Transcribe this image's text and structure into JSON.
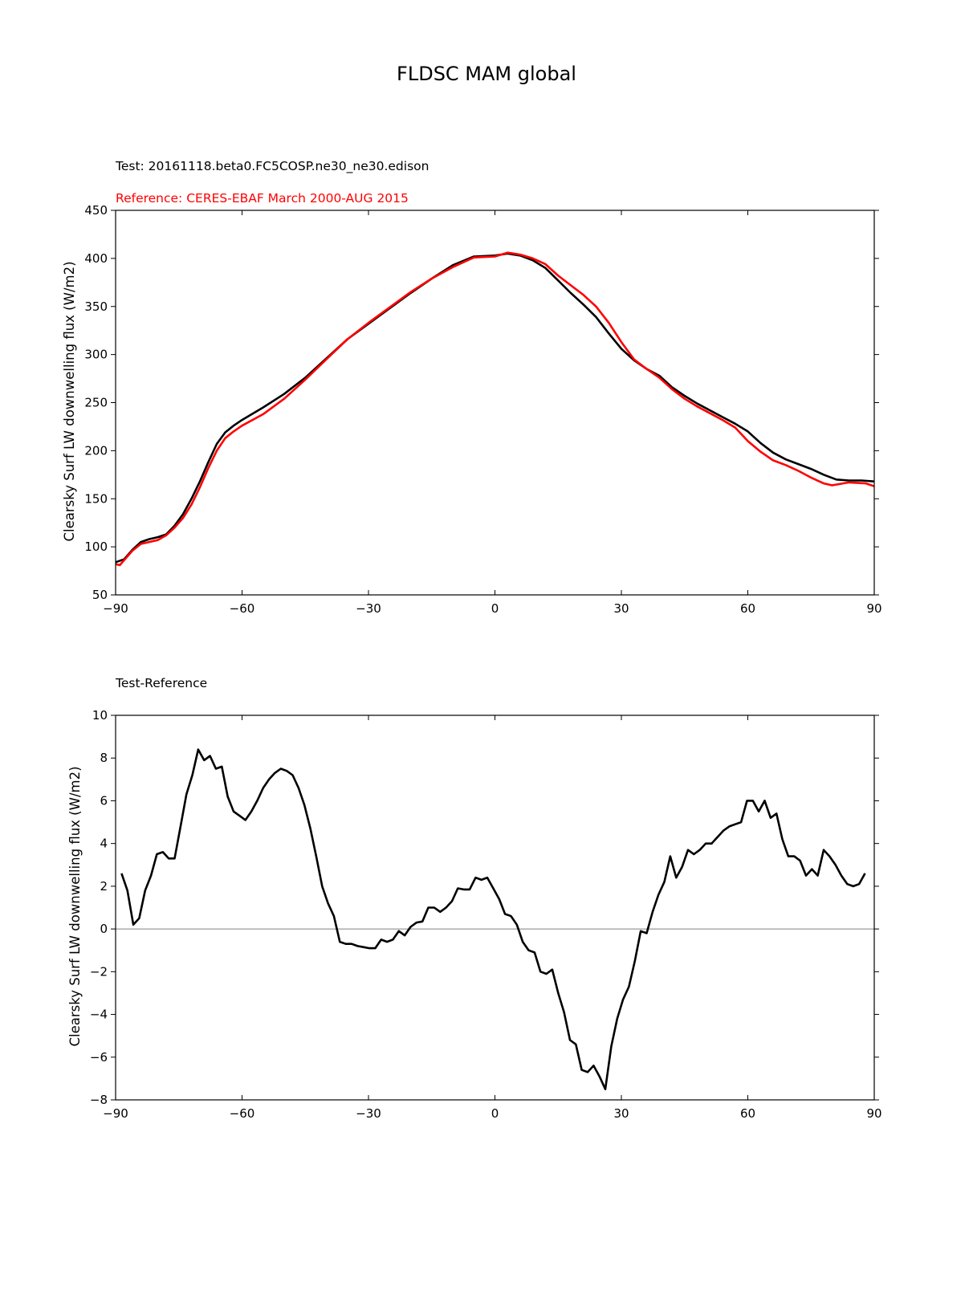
{
  "figure": {
    "title": "FLDSC MAM global",
    "test_label": "Test: 20161118.beta0.FC5COSP.ne30_ne30.edison",
    "reference_label": "Reference: CERES-EBAF March 2000-AUG 2015",
    "diff_label": "Test-Reference",
    "colors": {
      "test": "#000000",
      "reference": "#ff0000",
      "zero_line": "#808080"
    }
  },
  "chart_data": [
    {
      "type": "line",
      "ylabel": "Clearsky Surf LW downwelling flux (W/m2)",
      "xlabel": "",
      "xlim": [
        -90,
        90
      ],
      "ylim": [
        50,
        450
      ],
      "xticks": [
        -90,
        -60,
        -30,
        0,
        30,
        60,
        90
      ],
      "xtick_labels": [
        "−90",
        "−60",
        "−30",
        "0",
        "30",
        "60",
        "90"
      ],
      "yticks": [
        50,
        100,
        150,
        200,
        250,
        300,
        350,
        400,
        450
      ],
      "ytick_labels": [
        "50",
        "100",
        "150",
        "200",
        "250",
        "300",
        "350",
        "400",
        "450"
      ],
      "series": [
        {
          "name": "Test: 20161118.beta0.FC5COSP.ne30_ne30.edison",
          "color": "#000000",
          "x": [
            -90,
            -88,
            -86,
            -84,
            -82,
            -80,
            -78,
            -76,
            -74,
            -72,
            -70,
            -68,
            -66,
            -64,
            -62,
            -60,
            -55,
            -50,
            -45,
            -40,
            -35,
            -30,
            -25,
            -20,
            -15,
            -10,
            -5,
            0,
            3,
            6,
            9,
            12,
            15,
            18,
            21,
            24,
            27,
            30,
            33,
            36,
            39,
            42,
            45,
            48,
            51,
            54,
            57,
            60,
            63,
            66,
            69,
            72,
            75,
            78,
            81,
            84,
            87,
            90
          ],
          "values": [
            84,
            87,
            97,
            105,
            108,
            110,
            113,
            122,
            134,
            150,
            168,
            188,
            207,
            219,
            226,
            232,
            245,
            259,
            276,
            296,
            316,
            332,
            348,
            364,
            379,
            393,
            402,
            403,
            405,
            403,
            398,
            390,
            377,
            364,
            352,
            339,
            322,
            306,
            294,
            285,
            278,
            266,
            257,
            249,
            242,
            235,
            228,
            220,
            208,
            198,
            191,
            186,
            181,
            175,
            170,
            169,
            169,
            168
          ]
        },
        {
          "name": "Reference: CERES-EBAF March 2000-AUG 2015",
          "color": "#ff0000",
          "x": [
            -90,
            -89,
            -88,
            -86,
            -84,
            -82,
            -80,
            -78,
            -76,
            -74,
            -72,
            -70,
            -68,
            -66,
            -64,
            -62,
            -60,
            -55,
            -50,
            -45,
            -40,
            -35,
            -30,
            -25,
            -20,
            -15,
            -10,
            -5,
            0,
            3,
            6,
            9,
            12,
            15,
            18,
            21,
            24,
            27,
            30,
            33,
            36,
            39,
            42,
            45,
            48,
            51,
            54,
            57,
            60,
            63,
            66,
            69,
            72,
            75,
            78,
            80,
            84,
            88,
            90
          ],
          "values": [
            82,
            81,
            86,
            96,
            103,
            105,
            107,
            112,
            120,
            130,
            144,
            162,
            182,
            200,
            213,
            220,
            226,
            238,
            254,
            274,
            295,
            316,
            333,
            349,
            365,
            379,
            391,
            401,
            402,
            406,
            404,
            400,
            394,
            382,
            372,
            362,
            350,
            333,
            313,
            295,
            285,
            276,
            264,
            254,
            246,
            239,
            232,
            224,
            210,
            199,
            190,
            185,
            179,
            172,
            166,
            164,
            167,
            166,
            163
          ]
        }
      ]
    },
    {
      "type": "line",
      "ylabel": "Clearsky Surf LW downwelling flux (W/m2)",
      "xlabel": "",
      "xlim": [
        -90,
        90
      ],
      "ylim": [
        -8,
        10
      ],
      "xticks": [
        -90,
        -60,
        -30,
        0,
        30,
        60,
        90
      ],
      "xtick_labels": [
        "−90",
        "−60",
        "−30",
        "0",
        "30",
        "60",
        "90"
      ],
      "yticks": [
        -8,
        -6,
        -4,
        -2,
        0,
        2,
        4,
        6,
        8,
        10
      ],
      "ytick_labels": [
        "−8",
        "−6",
        "−4",
        "−2",
        "0",
        "2",
        "4",
        "6",
        "8",
        "10"
      ],
      "zero_line": 0,
      "series": [
        {
          "name": "Test-Reference",
          "color": "#000000",
          "x": [
            -88.6,
            -87.2,
            -85.8,
            -84.4,
            -83,
            -81.6,
            -80.2,
            -78.8,
            -77.4,
            -76,
            -74.6,
            -73.2,
            -71.8,
            -70.4,
            -69,
            -67.6,
            -66.2,
            -64.8,
            -63.4,
            -62,
            -60.6,
            -59.2,
            -57.8,
            -56.4,
            -55,
            -53.6,
            -52.2,
            -50.8,
            -49.4,
            -48,
            -46.6,
            -45.2,
            -43.8,
            -42.4,
            -41,
            -39.6,
            -38.2,
            -36.8,
            -35.4,
            -34,
            -32.6,
            -31.2,
            -29.8,
            -28.4,
            -27,
            -25.6,
            -24.2,
            -22.8,
            -21.4,
            -20,
            -18.6,
            -17.2,
            -15.8,
            -14.4,
            -13,
            -11.6,
            -10.2,
            -8.8,
            -7.4,
            -6,
            -4.6,
            -3.2,
            -1.8,
            -0.4,
            1,
            2.4,
            3.8,
            5.2,
            6.6,
            8,
            9.4,
            10.8,
            12.2,
            13.6,
            15,
            16.4,
            17.8,
            19.2,
            20.6,
            22,
            23.4,
            24.8,
            26.2,
            27.6,
            29,
            30.4,
            31.8,
            33.2,
            34.6,
            36,
            37.4,
            38.8,
            40.2,
            41.6,
            43,
            44.4,
            45.8,
            47.2,
            48.6,
            50,
            51.4,
            52.8,
            54.2,
            55.6,
            57,
            58.4,
            59.8,
            61.2,
            62.6,
            64,
            65.4,
            66.8,
            68.2,
            69.6,
            71,
            72.4,
            73.8,
            75.2,
            76.6,
            78,
            79.4,
            80.8,
            82.2,
            83.6,
            85,
            86.4,
            87.8
          ],
          "values": [
            2.6,
            1.8,
            0.2,
            0.5,
            1.8,
            2.5,
            3.5,
            3.6,
            3.3,
            3.3,
            4.8,
            6.3,
            7.2,
            8.4,
            7.9,
            8.1,
            7.5,
            7.6,
            6.2,
            5.5,
            5.3,
            5.1,
            5.5,
            6,
            6.6,
            7,
            7.3,
            7.5,
            7.4,
            7.2,
            6.6,
            5.8,
            4.7,
            3.4,
            2,
            1.2,
            0.6,
            -0.6,
            -0.7,
            -0.7,
            -0.8,
            -0.85,
            -0.9,
            -0.9,
            -0.5,
            -0.6,
            -0.5,
            -0.1,
            -0.3,
            0.1,
            0.3,
            0.35,
            1,
            1,
            0.8,
            1,
            1.3,
            1.9,
            1.85,
            1.85,
            2.4,
            2.3,
            2.4,
            1.9,
            1.4,
            0.7,
            0.6,
            0.2,
            -0.6,
            -1,
            -1.1,
            -2,
            -2.1,
            -1.9,
            -3,
            -3.9,
            -5.2,
            -5.4,
            -6.6,
            -6.7,
            -6.4,
            -6.9,
            -7.5,
            -5.5,
            -4.2,
            -3.3,
            -2.7,
            -1.5,
            -0.1,
            -0.2,
            0.8,
            1.6,
            2.2,
            3.4,
            2.4,
            2.9,
            3.7,
            3.5,
            3.7,
            4,
            4,
            4.3,
            4.6,
            4.8,
            4.9,
            5,
            6,
            6,
            5.5,
            6,
            5.2,
            5.4,
            4.2,
            3.4,
            3.4,
            3.2,
            2.5,
            2.8,
            2.5,
            3.7,
            3.4,
            3,
            2.5,
            2.1,
            2,
            2.1,
            2.6
          ]
        }
      ]
    }
  ]
}
